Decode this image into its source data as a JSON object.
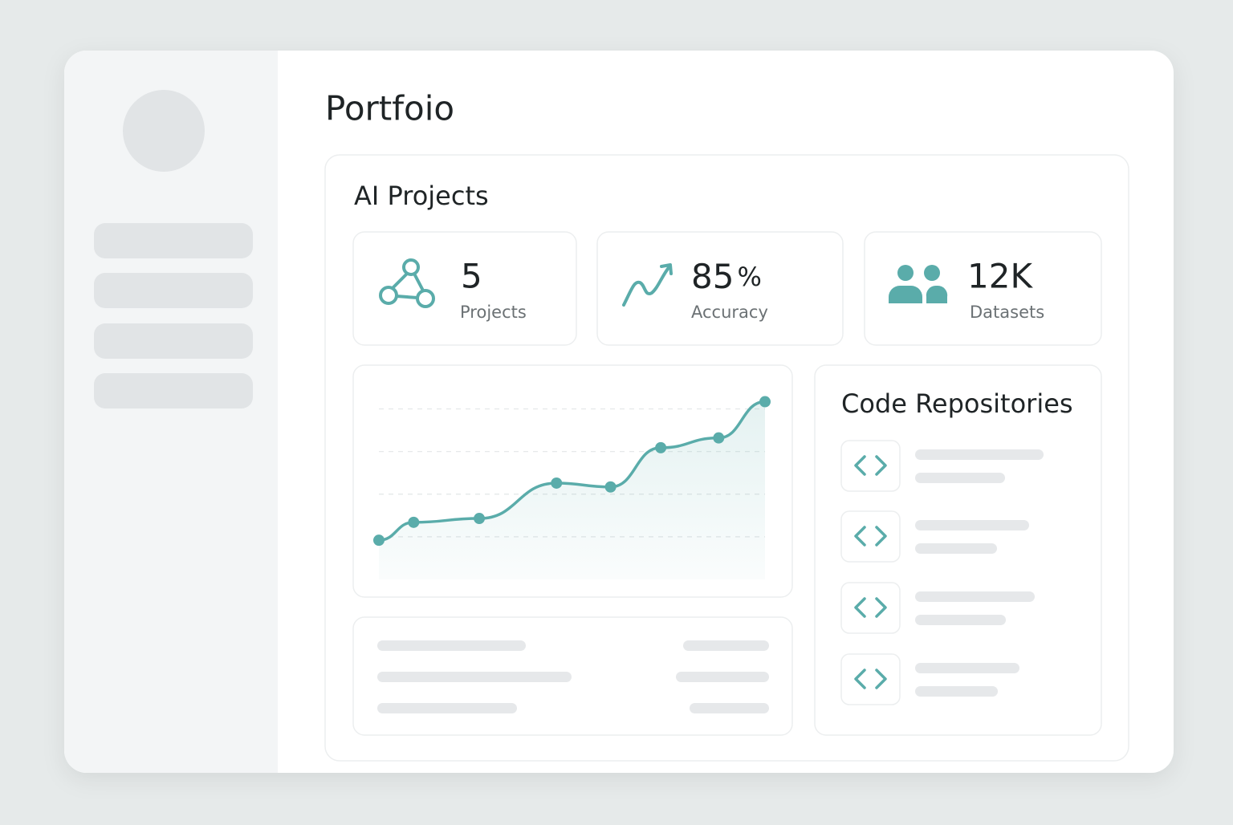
{
  "header": {
    "title": "Portfoio"
  },
  "projects": {
    "title": "AI Projects",
    "stats": [
      {
        "value": 5,
        "label": "Projects"
      },
      {
        "value": 85,
        "unit": "%",
        "label": "Accuracy"
      },
      {
        "value": "12K",
        "label": "Datasets"
      }
    ]
  },
  "chart": {
    "type": "line",
    "x": [
      0,
      0.9,
      2.6,
      4.6,
      6.0,
      7.3,
      8.8,
      10
    ],
    "values": [
      0.92,
      1.34,
      1.43,
      2.26,
      2.17,
      3.09,
      3.32,
      4.17
    ],
    "xlim": [
      0,
      10
    ],
    "ylim": [
      0,
      4.5
    ],
    "yticks": [
      1,
      2,
      3,
      4
    ],
    "grid": true,
    "color": "#5aacaa"
  },
  "repositories": {
    "title": "Code Repositories"
  }
}
